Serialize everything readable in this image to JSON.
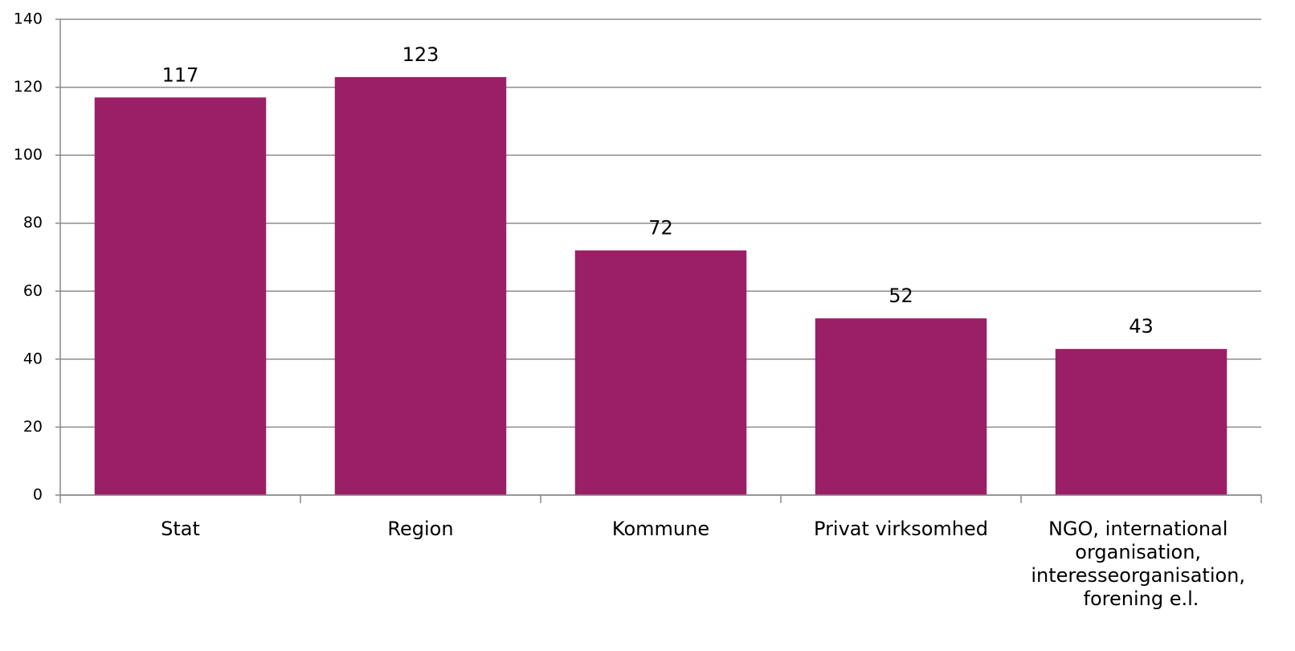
{
  "chart_data": {
    "type": "bar",
    "categories": [
      "Stat",
      "Region",
      "Kommune",
      "Privat virksomhed",
      "NGO, international organisation, interesseorganisation, forening e.l."
    ],
    "values": [
      117,
      123,
      72,
      52,
      43
    ],
    "color": "#9b1f66",
    "ylim": [
      0,
      140
    ],
    "yticks": [
      0,
      20,
      40,
      60,
      80,
      100,
      120,
      140
    ],
    "grid": true
  }
}
